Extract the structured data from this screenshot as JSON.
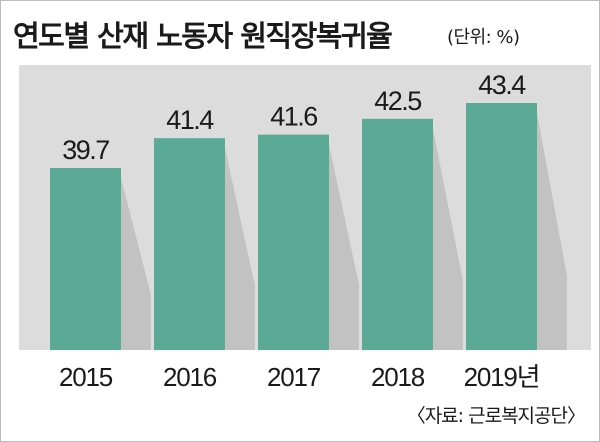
{
  "title": "연도별 산재 노동자 원직장복귀율",
  "unit": "(단위: %)",
  "source": "〈자료: 근로복지공단〉",
  "colors": {
    "bar": "#5aaa96",
    "shadow": "#c2c2c2",
    "panel": "#dcdcdc"
  },
  "chart_data": {
    "type": "bar",
    "categories": [
      "2015",
      "2016",
      "2017",
      "2018",
      "2019년"
    ],
    "values": [
      39.7,
      41.4,
      41.6,
      42.5,
      43.4
    ],
    "value_labels": [
      "39.7",
      "41.4",
      "41.6",
      "42.5",
      "43.4"
    ],
    "title": "연도별 산재 노동자 원직장복귀율",
    "xlabel": "",
    "ylabel": "",
    "grid": false,
    "legend": "none"
  }
}
